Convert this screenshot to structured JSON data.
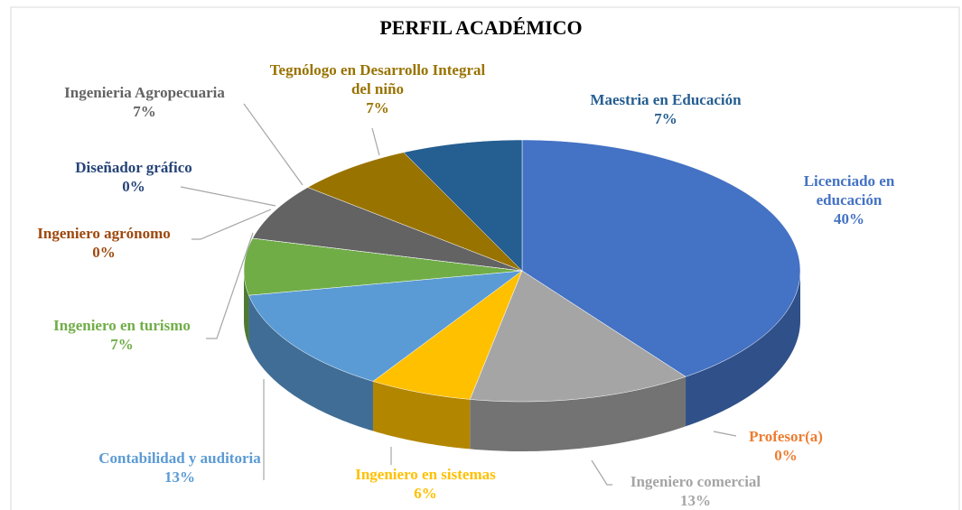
{
  "chart_data": {
    "type": "pie3d",
    "title": "PERFIL ACADÉMICO",
    "categories": [
      "Licenciado en educación",
      "Profesor(a)",
      "Ingeniero comercial",
      "Ingeniero en sistemas",
      "Contabilidad y auditoria",
      "Ingeniero en turismo",
      "Ingeniero agrónomo",
      "Diseñador gráfico",
      "Ingenieria Agropecuaria",
      "Tegnólogo en Desarrollo Integral del niño",
      "Maestria en Educación"
    ],
    "values": [
      40,
      0,
      13,
      6,
      13,
      7,
      0,
      0,
      7,
      7,
      7
    ],
    "value_labels": [
      "40%",
      "0%",
      "13%",
      "6%",
      "13%",
      "7%",
      "0%",
      "0%",
      "7%",
      "7%",
      "7%"
    ],
    "colors": [
      "#4472c4",
      "#ed7d31",
      "#a5a5a5",
      "#ffc000",
      "#5b9bd5",
      "#70ad47",
      "#9e480e",
      "#264478",
      "#636363",
      "#997300",
      "#255e91"
    ]
  }
}
